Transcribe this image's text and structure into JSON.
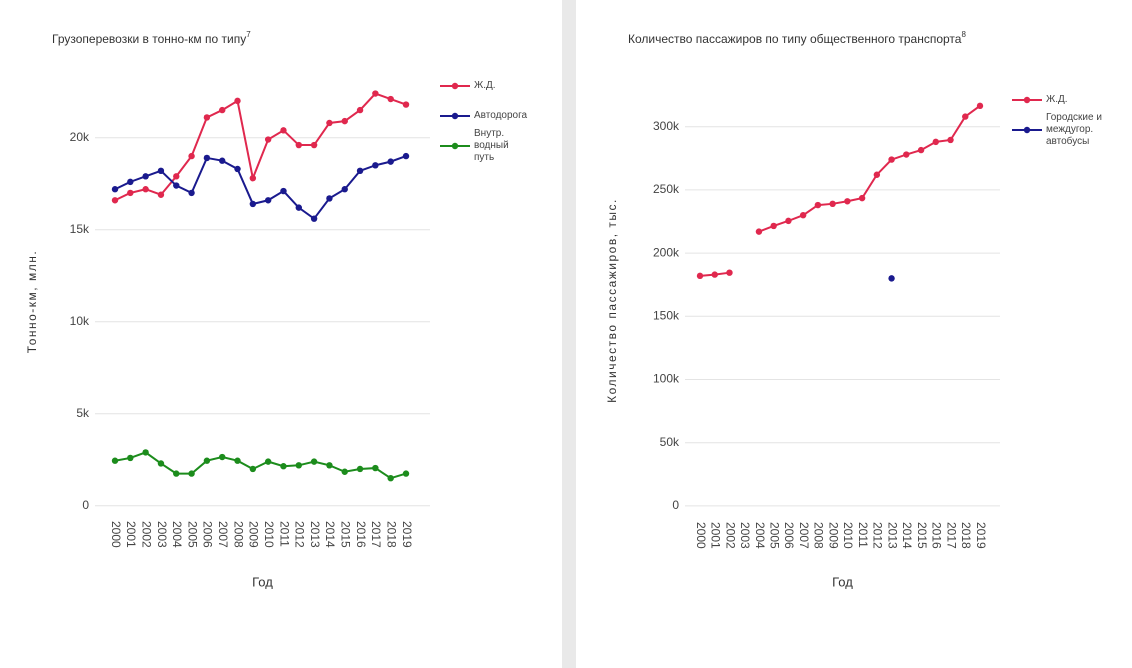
{
  "chart_data": [
    {
      "type": "line",
      "title": "Грузоперевозки в тонно-км по типу",
      "title_note": "7",
      "x_label": "Год",
      "y_label": "Тонно-км, млн.",
      "categories": [
        "2000",
        "2001",
        "2002",
        "2003",
        "2004",
        "2005",
        "2006",
        "2007",
        "2008",
        "2009",
        "2010",
        "2011",
        "2012",
        "2013",
        "2014",
        "2015",
        "2016",
        "2017",
        "2018",
        "2019"
      ],
      "series": [
        {
          "name": "Ж.Д.",
          "color": "#e0284e",
          "values": [
            16600,
            17000,
            17200,
            16900,
            17900,
            19000,
            21100,
            21500,
            22000,
            17800,
            19900,
            20400,
            19600,
            19600,
            20800,
            20900,
            21500,
            22400,
            22100,
            21800
          ]
        },
        {
          "name": "Автодорога",
          "color": "#1a1a8e",
          "values": [
            17200,
            17600,
            17900,
            18200,
            17400,
            17000,
            18900,
            18750,
            18300,
            16400,
            16600,
            17100,
            16200,
            15600,
            16700,
            17200,
            18200,
            18500,
            18700,
            19000
          ]
        },
        {
          "name": "Внутр. водный путь",
          "color": "#1c8c1c",
          "values": [
            2450,
            2600,
            2900,
            2300,
            1750,
            1750,
            2450,
            2650,
            2450,
            2000,
            2400,
            2150,
            2200,
            2400,
            2200,
            1850,
            2000,
            2050,
            1500,
            1750
          ]
        }
      ],
      "ylim": [
        -500,
        22700
      ],
      "yticks": [
        0,
        {
          "value": 5000,
          "label": "5k"
        },
        {
          "value": 10000,
          "label": "10k"
        },
        {
          "value": 15000,
          "label": "15k"
        },
        {
          "value": 20000,
          "label": "20k"
        }
      ],
      "grid": true
    },
    {
      "type": "line",
      "title": "Количество пассажиров по типу общественного транспорта",
      "title_note": "8",
      "x_label": "Год",
      "y_label": "Количество пассажиров, тыс.",
      "categories": [
        "2000",
        "2001",
        "2002",
        "2003",
        "2004",
        "2005",
        "2006",
        "2007",
        "2008",
        "2009",
        "2010",
        "2011",
        "2012",
        "2013",
        "2014",
        "2015",
        "2016",
        "2017",
        "2018",
        "2019"
      ],
      "series": [
        {
          "name": "Ж.Д.",
          "color": "#e0284e",
          "values": [
            182000,
            183000,
            184500,
            null,
            217000,
            221500,
            225500,
            230000,
            238000,
            239000,
            241000,
            243500,
            262000,
            274000,
            278000,
            281500,
            288000,
            289500,
            308000,
            316500
          ]
        },
        {
          "name": "Городские и междугор. автобусы",
          "color": "#1a1a8e",
          "values": [
            null,
            null,
            null,
            null,
            null,
            null,
            null,
            null,
            null,
            null,
            null,
            null,
            null,
            180000,
            null,
            null,
            null,
            null,
            null,
            null
          ]
        }
      ],
      "ylim": [
        -8000,
        333000
      ],
      "yticks": [
        0,
        {
          "value": 50000,
          "label": "50k"
        },
        {
          "value": 100000,
          "label": "100k"
        },
        {
          "value": 150000,
          "label": "150k"
        },
        {
          "value": 200000,
          "label": "200k"
        },
        {
          "value": 250000,
          "label": "250k"
        },
        {
          "value": 300000,
          "label": "300k"
        }
      ],
      "grid": true
    }
  ]
}
